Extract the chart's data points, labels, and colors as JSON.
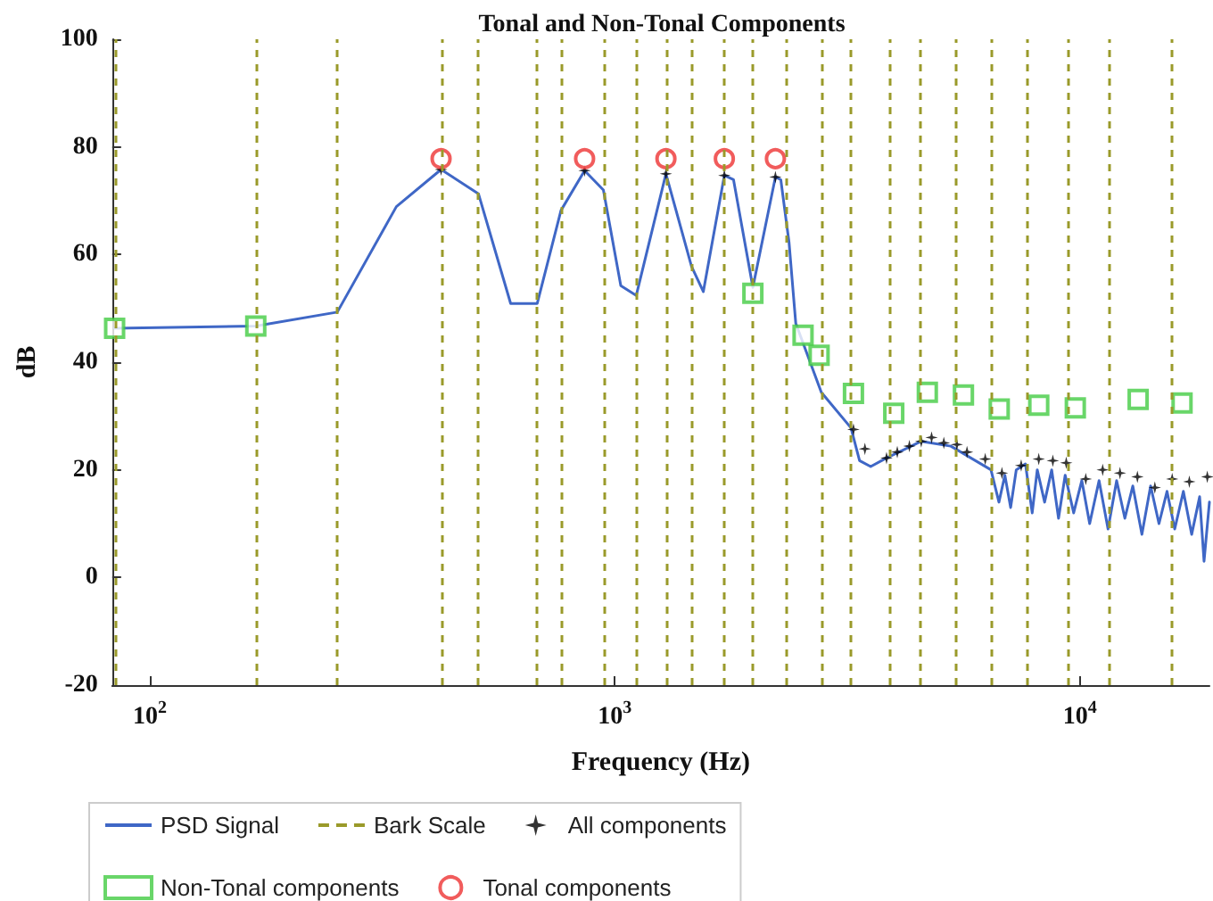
{
  "chart_data": {
    "type": "line",
    "title": "Tonal and Non-Tonal Components",
    "xlabel": "Frequency (Hz)",
    "ylabel": "dB",
    "log": "x",
    "xlim": [
      83,
      19000
    ],
    "xticks": [
      {
        "value": 100,
        "label": "10$^{2}$"
      },
      {
        "value": 1000,
        "label": "10$^{3}$"
      },
      {
        "value": 10000,
        "label": "10$^{4}$"
      }
    ],
    "ref_lines": [
      {
        "axis": "x",
        "value": 84,
        "label": "Bark Scale",
        "color": "#9a9a2a",
        "line_style": "dashed"
      },
      {
        "axis": "x",
        "value": 169,
        "color": "#9a9a2a",
        "line_style": "dashed"
      },
      {
        "axis": "x",
        "value": 253,
        "color": "#9a9a2a",
        "line_style": "dashed"
      },
      {
        "axis": "x",
        "value": 423,
        "color": "#9a9a2a",
        "line_style": "dashed"
      },
      {
        "axis": "x",
        "value": 509,
        "color": "#9a9a2a",
        "line_style": "dashed"
      },
      {
        "axis": "x",
        "value": 681,
        "color": "#9a9a2a",
        "line_style": "dashed"
      },
      {
        "axis": "x",
        "value": 766,
        "color": "#9a9a2a",
        "line_style": "dashed"
      },
      {
        "axis": "x",
        "value": 945,
        "color": "#9a9a2a",
        "line_style": "dashed"
      },
      {
        "axis": "x",
        "value": 1112,
        "color": "#9a9a2a",
        "line_style": "dashed"
      },
      {
        "axis": "x",
        "value": 1288,
        "color": "#9a9a2a",
        "line_style": "dashed"
      },
      {
        "axis": "x",
        "value": 1462,
        "color": "#9a9a2a",
        "line_style": "dashed"
      },
      {
        "axis": "x",
        "value": 1720,
        "color": "#9a9a2a",
        "line_style": "dashed"
      },
      {
        "axis": "x",
        "value": 1981,
        "color": "#9a9a2a",
        "line_style": "dashed"
      },
      {
        "axis": "x",
        "value": 2343,
        "color": "#9a9a2a",
        "line_style": "dashed"
      },
      {
        "axis": "x",
        "value": 2780,
        "color": "#9a9a2a",
        "line_style": "dashed"
      },
      {
        "axis": "x",
        "value": 3201,
        "color": "#9a9a2a",
        "line_style": "dashed"
      },
      {
        "axis": "x",
        "value": 3897,
        "color": "#9a9a2a",
        "line_style": "dashed"
      },
      {
        "axis": "x",
        "value": 4530,
        "color": "#9a9a2a",
        "line_style": "dashed"
      },
      {
        "axis": "x",
        "value": 5387,
        "color": "#9a9a2a",
        "line_style": "dashed"
      },
      {
        "axis": "x",
        "value": 6442,
        "color": "#9a9a2a",
        "line_style": "dashed"
      },
      {
        "axis": "x",
        "value": 7706,
        "color": "#9a9a2a",
        "line_style": "dashed"
      },
      {
        "axis": "x",
        "value": 9420,
        "color": "#9a9a2a",
        "line_style": "dashed"
      },
      {
        "axis": "x",
        "value": 11560,
        "color": "#9a9a2a",
        "line_style": "dashed"
      },
      {
        "axis": "x",
        "value": 15790,
        "color": "#9a9a2a",
        "line_style": "dashed"
      }
    ],
    "ylim": [
      -20,
      100
    ],
    "yticks": [
      -20,
      0,
      20,
      40,
      60,
      80,
      100
    ],
    "grid": false,
    "legend": "bottom left",
    "series": [
      {
        "name": "PSD Signal",
        "color": "#3f67c6",
        "line_style": "solid",
        "marker": "none",
        "x": [
          84,
          169,
          253,
          339,
          423,
          509,
          597,
          681,
          766,
          861,
          945,
          1030,
          1112,
          1288,
          1462,
          1550,
          1720,
          1800,
          1981,
          2215,
          2275,
          2370,
          2450,
          2780,
          3220,
          3360,
          3550,
          3840,
          4560,
          5280,
          6440,
          6700,
          6900,
          7100,
          7300,
          7640,
          7900,
          8100,
          8400,
          8700,
          9000,
          9300,
          9700,
          10100,
          10500,
          11000,
          11500,
          12000,
          12500,
          13000,
          13600,
          14200,
          14800,
          15400,
          16000,
          16700,
          17400,
          18100,
          18500,
          19000
        ],
        "values": [
          46.3,
          46.7,
          49.3,
          68.9,
          75.8,
          71.3,
          50.9,
          50.9,
          68.2,
          75.6,
          72,
          54.2,
          52.4,
          75,
          57.8,
          53.1,
          74.7,
          73.9,
          53.9,
          74.4,
          73.9,
          62.2,
          47.2,
          34.4,
          27.8,
          21.7,
          20.6,
          22.2,
          25.3,
          24.4,
          20,
          14,
          19,
          13,
          20,
          21.1,
          12,
          20,
          14,
          20,
          11,
          19,
          12,
          18,
          10,
          18,
          9,
          18,
          11,
          17,
          8,
          17,
          10,
          16,
          9,
          16,
          8,
          15,
          3,
          14
        ]
      },
      {
        "name": "All components",
        "type": "scatter",
        "color": "#000000",
        "marker": "star",
        "x": [
          423,
          861,
          1288,
          1720,
          2215,
          3260,
          3450,
          3840,
          4050,
          4300,
          4560,
          4800,
          5100,
          5440,
          5720,
          6260,
          6800,
          7480,
          8160,
          8750,
          9350,
          10300,
          11200,
          12200,
          13300,
          14500,
          15800,
          17200,
          18800
        ],
        "values": [
          75.8,
          75.6,
          75,
          74.7,
          74.4,
          27.5,
          23.9,
          22.2,
          23.3,
          24.4,
          25.3,
          26,
          25,
          24.7,
          23.3,
          22,
          19.4,
          20.8,
          22,
          21.7,
          21.3,
          18.3,
          20,
          19.4,
          18.7,
          16.7,
          18.3,
          17.8,
          18.7
        ]
      },
      {
        "name": "Non-Tonal components",
        "type": "scatter",
        "color": "#44cc44",
        "marker": "square",
        "x": [
          84,
          169,
          1981,
          2540,
          2750,
          3260,
          3980,
          4700,
          5620,
          6710,
          8160,
          9780,
          13350,
          16590
        ],
        "values": [
          46.3,
          46.7,
          52.8,
          45,
          41.3,
          34.2,
          30.5,
          34.4,
          33.9,
          31.3,
          32,
          31.5,
          33.1,
          32.4
        ]
      },
      {
        "name": "Tonal components",
        "type": "scatter",
        "color": "#ee3333",
        "marker": "circle",
        "x": [
          423,
          861,
          1288,
          1720,
          2215
        ],
        "values": [
          77.8,
          77.8,
          77.8,
          77.8,
          77.8
        ]
      }
    ]
  }
}
